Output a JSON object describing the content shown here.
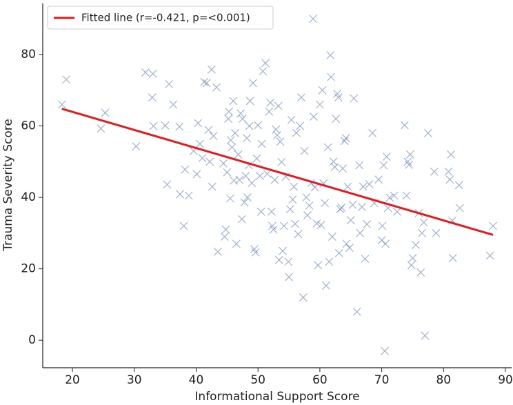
{
  "chart_data": {
    "type": "scatter",
    "xlabel": "Informational Support Score",
    "ylabel": "Trauma Severity Score",
    "xlim": [
      15.2,
      91
    ],
    "ylim": [
      -7.7,
      94.3
    ],
    "xticks": [
      20,
      30,
      40,
      50,
      60,
      70,
      80,
      90
    ],
    "yticks": [
      0,
      20,
      40,
      60,
      80
    ],
    "color": "#4c72b0",
    "legend": "upper left",
    "x": [
      18.3,
      19,
      24.6,
      25.3,
      30.3,
      31.8,
      33,
      32.9,
      33.1,
      35,
      35.3,
      35.6,
      36.3,
      37.3,
      37.4,
      38,
      38.2,
      38.8,
      39.6,
      40.1,
      40.3,
      40.6,
      41,
      41.3,
      41.7,
      42,
      42.2,
      42.5,
      42.8,
      42.6,
      43.3,
      43.5,
      44.4,
      44.6,
      44.8,
      45,
      45.2,
      45.3,
      45.5,
      45.6,
      45.8,
      46,
      46.1,
      46.3,
      46.5,
      46.8,
      47,
      47.2,
      47.4,
      47.5,
      47.8,
      48,
      48.2,
      48.3,
      48.5,
      48.6,
      48.7,
      49,
      49.2,
      49.4,
      49.6,
      49.8,
      50,
      50.3,
      50.5,
      50.6,
      50.8,
      51.2,
      51.5,
      51.8,
      52,
      52.2,
      52.3,
      52.5,
      52.7,
      52.9,
      53.1,
      53.3,
      53.4,
      53.6,
      53.8,
      54,
      54.2,
      54.5,
      54.9,
      55,
      55.2,
      55.4,
      55.6,
      55.8,
      56,
      56.2,
      56.5,
      56.8,
      57,
      57.3,
      57.5,
      57.8,
      58,
      58.3,
      58.6,
      58.9,
      59,
      59.2,
      59.5,
      59.7,
      60,
      60.2,
      60.4,
      60.6,
      60.8,
      61,
      61.3,
      61.5,
      61.7,
      61.8,
      62,
      62.2,
      62.4,
      62.6,
      62.8,
      63,
      63.1,
      63.3,
      63.5,
      63.7,
      64,
      64.2,
      64.3,
      64.5,
      64.8,
      65,
      65.3,
      65.5,
      66,
      66.4,
      66.5,
      66.8,
      67,
      67.3,
      67.6,
      68,
      68.5,
      68.8,
      69.5,
      70,
      70.1,
      70.3,
      70.5,
      70.6,
      70.8,
      71,
      71.3,
      72,
      72.5,
      73.7,
      74,
      74.2,
      74.4,
      74.6,
      74.8,
      75,
      75.5,
      76,
      76.3,
      76.5,
      76.8,
      77,
      77.5,
      78.5,
      78.8,
      80.8,
      81,
      81.2,
      81.4,
      81.5,
      82.5,
      82.6,
      87.5,
      88
    ],
    "y": [
      66,
      73,
      59.3,
      63.7,
      54.3,
      75,
      74.6,
      68,
      60,
      60.1,
      43.6,
      71.7,
      66,
      59.8,
      40.9,
      32,
      47.8,
      40.5,
      53,
      46.5,
      60.8,
      55,
      51,
      72.3,
      72,
      58.9,
      50,
      75.8,
      57.2,
      43,
      70.8,
      24.8,
      49.5,
      29,
      31,
      47,
      62,
      64,
      39.7,
      56,
      54,
      67,
      44.7,
      58,
      27,
      52,
      44.9,
      63.5,
      33.9,
      62,
      38.6,
      46,
      56.6,
      40,
      49,
      60,
      67,
      44,
      72,
      25.5,
      24.6,
      50.9,
      60.2,
      46,
      36,
      55,
      75.3,
      77.6,
      46.6,
      64,
      66.5,
      36,
      32,
      31,
      44.9,
      59,
      57.4,
      65.6,
      22.5,
      55.6,
      49.9,
      25,
      32,
      45.8,
      22,
      17.7,
      36.7,
      61.7,
      39.4,
      43,
      32.6,
      58.1,
      29.7,
      60,
      68,
      12,
      53,
      40,
      35,
      37.7,
      44,
      90,
      62.6,
      42.8,
      32.7,
      21,
      66,
      32.3,
      70,
      43.9,
      38.4,
      15.3,
      54,
      22,
      79.8,
      73.7,
      29,
      50,
      48.5,
      62,
      69,
      68,
      24.4,
      36.7,
      37.1,
      48.1,
      55.8,
      56.6,
      27,
      43,
      25.9,
      33.6,
      37.9,
      67.7,
      8,
      49,
      30,
      37.3,
      43,
      22.8,
      32.5,
      43.7,
      58,
      38.4,
      45,
      28,
      32,
      49,
      -3,
      27,
      51.4,
      37,
      39.9,
      40.5,
      36,
      60.2,
      40.5,
      50,
      49.1,
      52,
      21,
      23,
      26.7,
      35.6,
      19,
      30,
      33,
      1.3,
      58,
      47.2,
      30,
      47.2,
      45,
      52,
      33.5,
      23,
      43.4,
      37,
      23.7,
      32
    ],
    "fit": {
      "name": "Fitted line (r=-0.421, p=<0.001)",
      "color": "#e41a1c",
      "x": [
        18.3,
        88
      ],
      "y": [
        64.8,
        29.5
      ]
    }
  }
}
